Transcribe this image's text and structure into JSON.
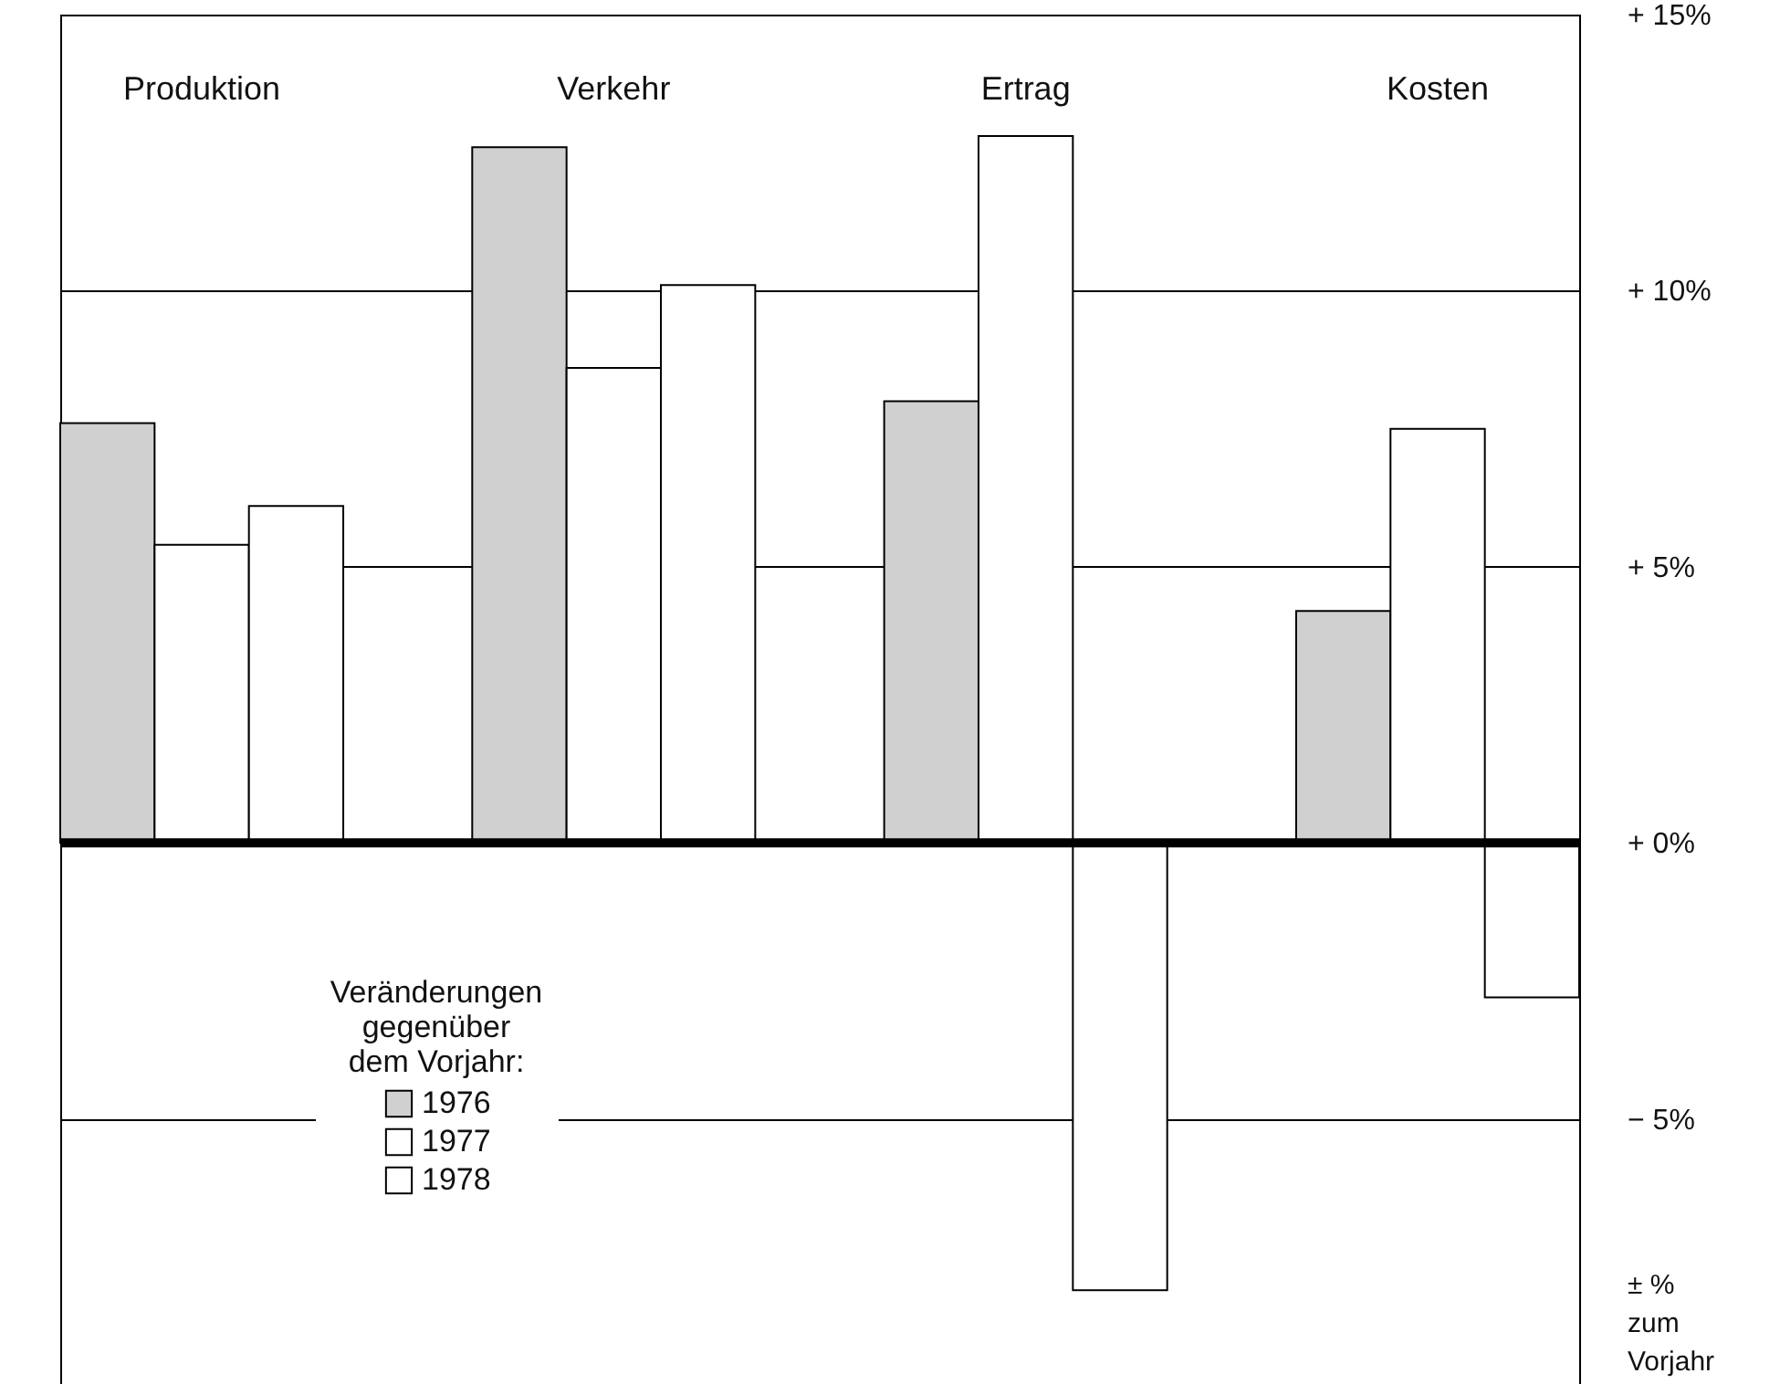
{
  "chart_data": {
    "type": "bar",
    "categories": [
      "Produktion",
      "Verkehr",
      "Ertrag",
      "Kosten"
    ],
    "series": [
      {
        "name": "1976",
        "color": "#d0d0d0",
        "values": [
          7.6,
          12.6,
          8.0,
          4.2
        ]
      },
      {
        "name": "1977",
        "color": "#ffffff",
        "values": [
          5.4,
          8.6,
          12.8,
          7.5
        ]
      },
      {
        "name": "1978",
        "color": "#ffffff",
        "values": [
          6.1,
          10.1,
          -8.1,
          -2.8
        ]
      }
    ],
    "ylim": [
      -9.8,
      15
    ],
    "yticks": [
      {
        "value": 15,
        "label": "+ 15%"
      },
      {
        "value": 10,
        "label": "+ 10%"
      },
      {
        "value": 5,
        "label": "+ 5%"
      },
      {
        "value": 0,
        "label": "+ 0%"
      },
      {
        "value": -5,
        "label": "− 5%"
      }
    ],
    "ylabel": "± % zum Vorjahr",
    "legend_title": "Veränderungen gegenüber dem Vorjahr:",
    "legend": "bottom left",
    "grid": "y",
    "ref_lines": [
      {
        "axis": "y",
        "value": 0
      }
    ]
  }
}
